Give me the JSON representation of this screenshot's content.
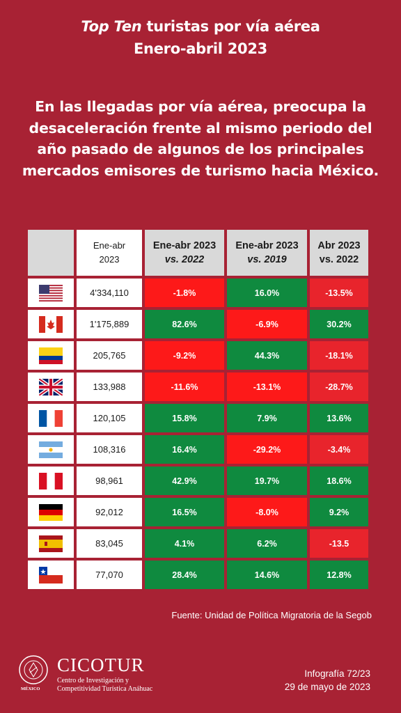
{
  "header": {
    "title_italic": "Top Ten",
    "title_rest": " turistas por vía aérea",
    "title_line2": "Enero-abril 2023",
    "subtitle": "En las llegadas por vía aérea, preocupa la desaceleración frente al mismo periodo del año pasado de algunos de los principales mercados emisores de turismo hacia México."
  },
  "table": {
    "columns": {
      "c0_line1": "Ene-abr",
      "c0_line2": "2023",
      "c1_line1": "Ene-abr 2023",
      "c1_line2": "vs. 2022",
      "c2_line1": "Ene-abr  2023",
      "c2_line2": "vs. 2019",
      "c3_line1": "Abr 2023",
      "c3_line2": "vs. 2022"
    },
    "rows": [
      {
        "flag": "usa-flag-icon",
        "value": "4'334,110",
        "v1": "-1.8%",
        "v2": "16.0%",
        "v3": "-13.5%"
      },
      {
        "flag": "canada-flag-icon",
        "value": "1'175,889",
        "v1": "82.6%",
        "v2": "-6.9%",
        "v3": "30.2%"
      },
      {
        "flag": "colombia-flag-icon",
        "value": "205,765",
        "v1": "-9.2%",
        "v2": "44.3%",
        "v3": "-18.1%"
      },
      {
        "flag": "uk-flag-icon",
        "value": "133,988",
        "v1": "-11.6%",
        "v2": "-13.1%",
        "v3": "-28.7%"
      },
      {
        "flag": "france-flag-icon",
        "value": "120,105",
        "v1": "15.8%",
        "v2": "7.9%",
        "v3": "13.6%"
      },
      {
        "flag": "argentina-flag-icon",
        "value": "108,316",
        "v1": "16.4%",
        "v2": "-29.2%",
        "v3": "-3.4%"
      },
      {
        "flag": "peru-flag-icon",
        "value": "98,961",
        "v1": "42.9%",
        "v2": "19.7%",
        "v3": "18.6%"
      },
      {
        "flag": "germany-flag-icon",
        "value": "92,012",
        "v1": "16.5%",
        "v2": "-8.0%",
        "v3": "9.2%"
      },
      {
        "flag": "spain-flag-icon",
        "value": "83,045",
        "v1": "4.1%",
        "v2": "6.2%",
        "v3": "-13.5"
      },
      {
        "flag": "chile-flag-icon",
        "value": "77,070",
        "v1": "28.4%",
        "v2": "14.6%",
        "v3": "12.8%"
      }
    ]
  },
  "colors": {
    "background": "#a82234",
    "positive": "#0f8a3f",
    "negative": "#fd1919"
  },
  "source": "Fuente: Unidad de Política Migratoria de la Segob",
  "logo": {
    "brand": "CICOTUR",
    "line1": "Centro de Investigación y",
    "line2": "Competitividad Turística Anáhuac",
    "seal_label": "MÉXICO",
    "seal_text": "UNIVERSIDAD ANÁHUAC"
  },
  "footer": {
    "infografia": "Infografía 72/23",
    "date": "29 de mayo de 2023"
  }
}
